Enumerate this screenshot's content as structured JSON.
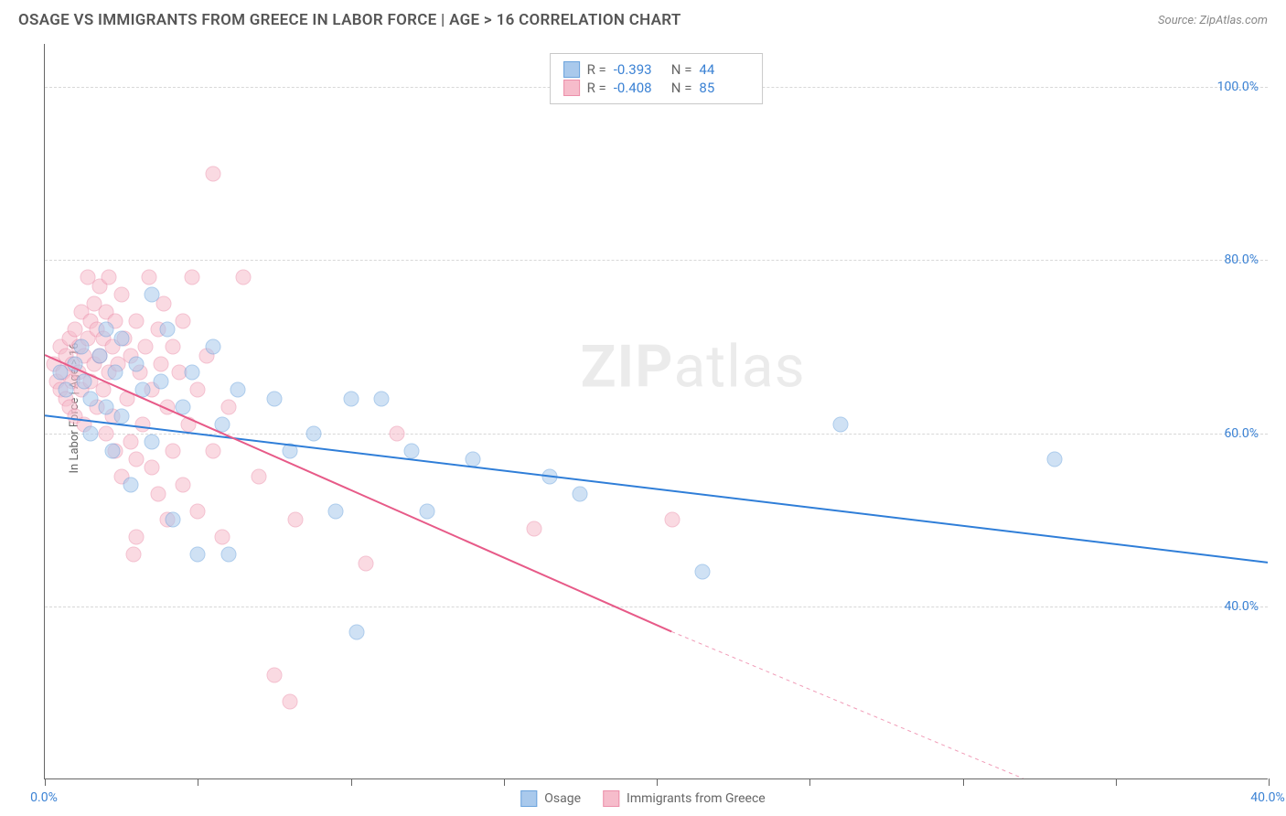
{
  "header": {
    "title": "OSAGE VS IMMIGRANTS FROM GREECE IN LABOR FORCE | AGE > 16 CORRELATION CHART",
    "source": "Source: ZipAtlas.com"
  },
  "chart": {
    "type": "scatter",
    "ylabel": "In Labor Force | Age > 16",
    "xlim": [
      0,
      40
    ],
    "ylim": [
      20,
      105
    ],
    "x_ticks": [
      0,
      5,
      10,
      15,
      20,
      25,
      30,
      35,
      40
    ],
    "x_tick_labels": {
      "0": "0.0%",
      "40": "40.0%"
    },
    "y_gridlines": [
      40,
      60,
      80,
      100
    ],
    "y_tick_labels": {
      "40": "40.0%",
      "60": "60.0%",
      "80": "80.0%",
      "100": "100.0%"
    },
    "background_color": "#ffffff",
    "grid_color": "#d8d8d8",
    "axis_color": "#666666",
    "tick_label_color": "#3b82d4",
    "watermark": {
      "bold": "ZIP",
      "rest": "atlas"
    },
    "series": [
      {
        "name": "Osage",
        "color_fill": "#a9c9ec",
        "color_stroke": "#6ba3dd",
        "fill_opacity": 0.55,
        "marker_size": 17,
        "line_color": "#2f7ed8",
        "line_width": 2,
        "trend_start": [
          0,
          62
        ],
        "trend_end": [
          40,
          45
        ],
        "points": [
          [
            0.5,
            67
          ],
          [
            0.7,
            65
          ],
          [
            1.0,
            68
          ],
          [
            1.2,
            70
          ],
          [
            1.3,
            66
          ],
          [
            1.5,
            64
          ],
          [
            1.5,
            60
          ],
          [
            1.8,
            69
          ],
          [
            2.0,
            72
          ],
          [
            2.0,
            63
          ],
          [
            2.2,
            58
          ],
          [
            2.3,
            67
          ],
          [
            2.5,
            71
          ],
          [
            2.5,
            62
          ],
          [
            2.8,
            54
          ],
          [
            3.0,
            68
          ],
          [
            3.2,
            65
          ],
          [
            3.5,
            76
          ],
          [
            3.5,
            59
          ],
          [
            3.8,
            66
          ],
          [
            4.0,
            72
          ],
          [
            4.2,
            50
          ],
          [
            4.5,
            63
          ],
          [
            4.8,
            67
          ],
          [
            5.0,
            46
          ],
          [
            5.5,
            70
          ],
          [
            5.8,
            61
          ],
          [
            6.0,
            46
          ],
          [
            6.3,
            65
          ],
          [
            7.5,
            64
          ],
          [
            8.0,
            58
          ],
          [
            8.8,
            60
          ],
          [
            9.5,
            51
          ],
          [
            10.0,
            64
          ],
          [
            10.2,
            37
          ],
          [
            11.0,
            64
          ],
          [
            12.0,
            58
          ],
          [
            12.5,
            51
          ],
          [
            14.0,
            57
          ],
          [
            16.5,
            55
          ],
          [
            17.5,
            53
          ],
          [
            21.5,
            44
          ],
          [
            26.0,
            61
          ],
          [
            33.0,
            57
          ]
        ]
      },
      {
        "name": "Immigrants from Greece",
        "color_fill": "#f6bccb",
        "color_stroke": "#ec8faa",
        "fill_opacity": 0.55,
        "marker_size": 17,
        "line_color": "#e75a88",
        "line_width": 2,
        "trend_start": [
          0,
          69
        ],
        "trend_end": [
          20.5,
          37
        ],
        "trend_start_dashed": [
          20.5,
          37
        ],
        "trend_end_dashed": [
          32,
          20
        ],
        "points": [
          [
            0.3,
            68
          ],
          [
            0.4,
            66
          ],
          [
            0.5,
            70
          ],
          [
            0.5,
            65
          ],
          [
            0.6,
            67
          ],
          [
            0.7,
            69
          ],
          [
            0.7,
            64
          ],
          [
            0.8,
            71
          ],
          [
            0.8,
            63
          ],
          [
            0.9,
            68
          ],
          [
            0.9,
            66
          ],
          [
            1.0,
            72
          ],
          [
            1.0,
            62
          ],
          [
            1.1,
            67
          ],
          [
            1.1,
            70
          ],
          [
            1.2,
            65
          ],
          [
            1.2,
            74
          ],
          [
            1.3,
            69
          ],
          [
            1.3,
            61
          ],
          [
            1.4,
            71
          ],
          [
            1.4,
            78
          ],
          [
            1.5,
            66
          ],
          [
            1.5,
            73
          ],
          [
            1.6,
            68
          ],
          [
            1.6,
            75
          ],
          [
            1.7,
            72
          ],
          [
            1.7,
            63
          ],
          [
            1.8,
            69
          ],
          [
            1.8,
            77
          ],
          [
            1.9,
            71
          ],
          [
            1.9,
            65
          ],
          [
            2.0,
            60
          ],
          [
            2.0,
            74
          ],
          [
            2.1,
            67
          ],
          [
            2.1,
            78
          ],
          [
            2.2,
            70
          ],
          [
            2.2,
            62
          ],
          [
            2.3,
            73
          ],
          [
            2.3,
            58
          ],
          [
            2.4,
            68
          ],
          [
            2.5,
            76
          ],
          [
            2.5,
            55
          ],
          [
            2.6,
            71
          ],
          [
            2.7,
            64
          ],
          [
            2.8,
            59
          ],
          [
            2.8,
            69
          ],
          [
            2.9,
            46
          ],
          [
            3.0,
            73
          ],
          [
            3.0,
            57
          ],
          [
            3.0,
            48
          ],
          [
            3.1,
            67
          ],
          [
            3.2,
            61
          ],
          [
            3.3,
            70
          ],
          [
            3.4,
            78
          ],
          [
            3.5,
            56
          ],
          [
            3.5,
            65
          ],
          [
            3.7,
            72
          ],
          [
            3.7,
            53
          ],
          [
            3.8,
            68
          ],
          [
            3.9,
            75
          ],
          [
            4.0,
            63
          ],
          [
            4.0,
            50
          ],
          [
            4.2,
            70
          ],
          [
            4.2,
            58
          ],
          [
            4.4,
            67
          ],
          [
            4.5,
            54
          ],
          [
            4.5,
            73
          ],
          [
            4.7,
            61
          ],
          [
            4.8,
            78
          ],
          [
            5.0,
            65
          ],
          [
            5.0,
            51
          ],
          [
            5.3,
            69
          ],
          [
            5.5,
            58
          ],
          [
            5.5,
            90
          ],
          [
            5.8,
            48
          ],
          [
            6.0,
            63
          ],
          [
            6.5,
            78
          ],
          [
            7.0,
            55
          ],
          [
            7.5,
            32
          ],
          [
            8.0,
            29
          ],
          [
            8.2,
            50
          ],
          [
            10.5,
            45
          ],
          [
            11.5,
            60
          ],
          [
            16.0,
            49
          ],
          [
            20.5,
            50
          ]
        ]
      }
    ],
    "stats_legend": {
      "rows": [
        {
          "swatch_fill": "#a9c9ec",
          "swatch_stroke": "#6ba3dd",
          "r_label": "R =",
          "r_value": "-0.393",
          "n_label": "N =",
          "n_value": "44"
        },
        {
          "swatch_fill": "#f6bccb",
          "swatch_stroke": "#ec8faa",
          "r_label": "R =",
          "r_value": "-0.408",
          "n_label": "N =",
          "n_value": "85"
        }
      ]
    },
    "bottom_legend": [
      {
        "swatch_fill": "#a9c9ec",
        "swatch_stroke": "#6ba3dd",
        "label": "Osage"
      },
      {
        "swatch_fill": "#f6bccb",
        "swatch_stroke": "#ec8faa",
        "label": "Immigrants from Greece"
      }
    ]
  }
}
